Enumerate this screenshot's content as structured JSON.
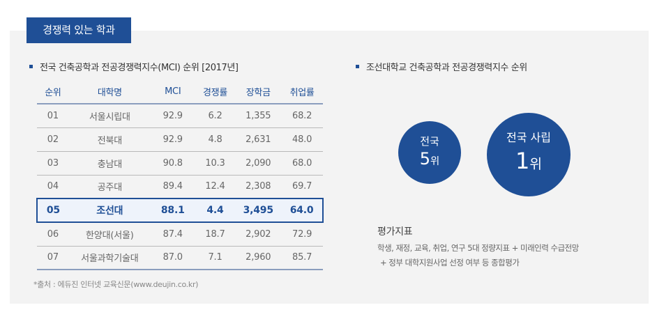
{
  "tag": {
    "label": "경쟁력 있는 학과"
  },
  "left_section": {
    "title": "전국 건축공학과 전공경쟁력지수(MCI) 순위 [2017년]",
    "table": {
      "headers": [
        "순위",
        "대학명",
        "MCI",
        "경쟁률",
        "장학금",
        "취업률"
      ],
      "rows": [
        [
          "01",
          "서울시립대",
          "92.9",
          "6.2",
          "1,355",
          "68.2"
        ],
        [
          "02",
          "전북대",
          "92.9",
          "4.8",
          "2,631",
          "48.0"
        ],
        [
          "03",
          "충남대",
          "90.8",
          "10.3",
          "2,090",
          "68.0"
        ],
        [
          "04",
          "공주대",
          "89.4",
          "12.4",
          "2,308",
          "69.7"
        ],
        [
          "05",
          "조선대",
          "88.1",
          "4.4",
          "3,495",
          "64.0"
        ],
        [
          "06",
          "한양대(서울)",
          "87.4",
          "18.7",
          "2,902",
          "72.9"
        ],
        [
          "07",
          "서울과학기술대",
          "87.0",
          "7.1",
          "2,960",
          "85.7"
        ]
      ],
      "highlight_row_index": 4
    },
    "source": "*출처 : 에듀진 인터넷 교육신문(www.deujin.co.kr)"
  },
  "right_section": {
    "title": "조선대학교 건축공학과 전공경쟁력지수 순위",
    "badge_national": {
      "line1": "전국",
      "number": "5",
      "unit": "위"
    },
    "badge_private": {
      "line1": "전국 사립",
      "number": "1",
      "unit": "위"
    },
    "eval": {
      "title": "평가지표",
      "line1": "학생, 재정, 교육, 취업, 연구 5대 정량지표 + 미래인력 수급전망",
      "line2": "+ 정부 대학지원사업 선정 여부 등 종합평가"
    }
  },
  "colors": {
    "accent": "#1f4f96",
    "panel_bg": "#f3f3f3",
    "highlight_bg": "#eef3fb"
  }
}
